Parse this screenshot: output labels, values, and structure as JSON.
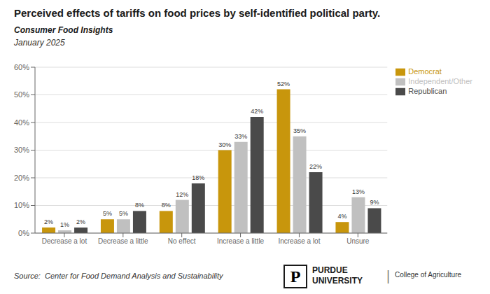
{
  "chart_data": {
    "type": "bar",
    "title": "Perceived effects of tariffs on food prices by self-identified political party.",
    "subtitle": "Consumer Food Insights",
    "annotations": [
      "January 2025",
      "Source:  Center for Food Demand Analysis and Sustainability",
      "P",
      "PURDUE\nUNIVERSITY",
      "|",
      "College of Agriculture"
    ],
    "categories": [
      "Decrease a lot",
      "Decrease a little",
      "No effect",
      "Increase a little",
      "Increase a lot",
      "Unsure"
    ],
    "series": [
      {
        "name": "Democrat",
        "color": "#C8960C",
        "values": [
          2,
          5,
          8,
          30,
          52,
          4
        ],
        "value_labels": [
          "2%",
          "5%",
          "8%",
          "30%",
          "52%",
          "4%"
        ]
      },
      {
        "name": "Independent/Other",
        "color": "#C0C0C0",
        "values": [
          1,
          5,
          12,
          33,
          35,
          13
        ],
        "value_labels": [
          "1%",
          "5%",
          "12%",
          "33%",
          "35%",
          "13%"
        ]
      },
      {
        "name": "Republican",
        "color": "#4A4A4A",
        "values": [
          2,
          8,
          18,
          42,
          22,
          9
        ],
        "value_labels": [
          "2%",
          "8%",
          "18%",
          "42%",
          "22%",
          "9%"
        ]
      }
    ],
    "ylim": [
      0,
      60
    ],
    "yticks": [
      {
        "value": 0,
        "label": "0%"
      },
      {
        "value": 10,
        "label": "10%"
      },
      {
        "value": 20,
        "label": "20%"
      },
      {
        "value": 30,
        "label": "30%"
      },
      {
        "value": 40,
        "label": "40%"
      },
      {
        "value": 50,
        "label": "50%"
      },
      {
        "value": 60,
        "label": "60%"
      }
    ],
    "grid": true,
    "legend": "upper right",
    "data_labels": true
  }
}
